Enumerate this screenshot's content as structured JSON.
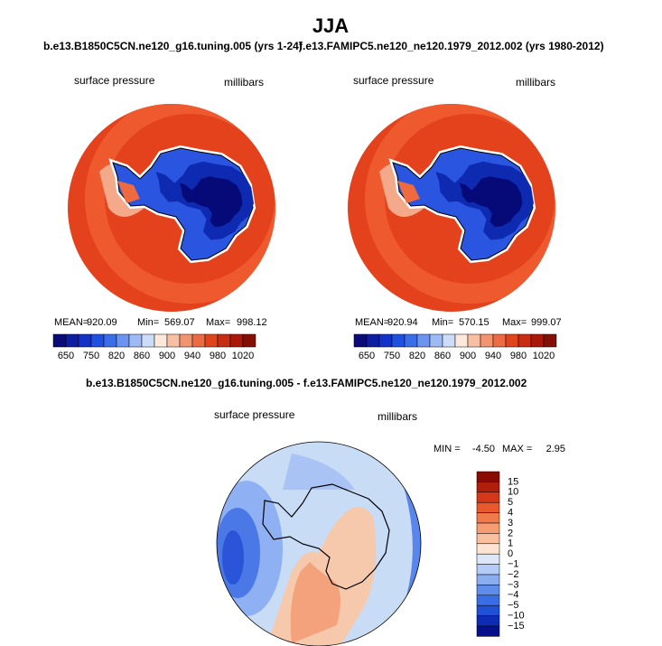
{
  "title": "JJA",
  "panels": [
    {
      "title": "b.e13.B1850C5CN.ne120_g16.tuning.005 (yrs 1-24)",
      "variable": "surface pressure",
      "units": "millibars",
      "stats": {
        "mean_label": "MEAN=",
        "mean": "920.09",
        "min_label": "Min=",
        "min": "569.07",
        "max_label": "Max=",
        "max": "998.12"
      },
      "colorbar_labels": [
        "650",
        "750",
        "820",
        "860",
        "900",
        "940",
        "980",
        "1020"
      ]
    },
    {
      "title": "f.e13.FAMIPC5.ne120_ne120.1979_2012.002 (yrs 1980-2012)",
      "variable": "surface pressure",
      "units": "millibars",
      "stats": {
        "mean_label": "MEAN=",
        "mean": "920.94",
        "min_label": "Min=",
        "min": "570.15",
        "max_label": "Max=",
        "max": "999.07"
      },
      "colorbar_labels": [
        "650",
        "750",
        "820",
        "860",
        "900",
        "940",
        "980",
        "1020"
      ]
    }
  ],
  "difference": {
    "title": "b.e13.B1850C5CN.ne120_g16.tuning.005 - f.e13.FAMIPC5.ne120_ne120.1979_2012.002",
    "variable": "surface pressure",
    "units": "millibars",
    "stats": {
      "min_label": "MIN =",
      "min": "-4.50",
      "max_label": "MAX =",
      "max": "2.95"
    },
    "colorbar_labels": [
      "15",
      "10",
      "5",
      "4",
      "3",
      "2",
      "1",
      "0",
      "−1",
      "−2",
      "−3",
      "−4",
      "−5",
      "−10",
      "−15"
    ]
  }
}
